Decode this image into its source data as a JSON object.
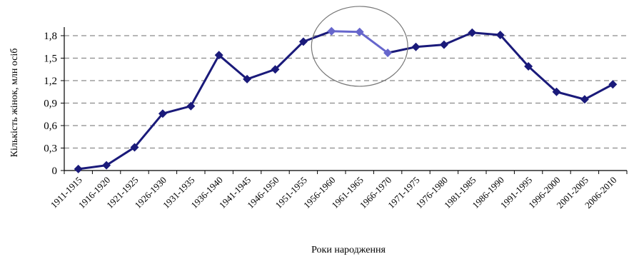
{
  "chart_data": {
    "type": "line",
    "title": "",
    "xlabel": "Роки народження",
    "ylabel": "Кількість жінок, млн осіб",
    "categories": [
      "1911-1915",
      "1916-1920",
      "1921-1925",
      "1926-1930",
      "1931-1935",
      "1936-1940",
      "1941-1945",
      "1946-1950",
      "1951-1955",
      "1956-1960",
      "1961-1965",
      "1966-1970",
      "1971-1975",
      "1976-1980",
      "1981-1985",
      "1986-1990",
      "1991-1995",
      "1996-2000",
      "2001-2005",
      "2006-2010"
    ],
    "series": [
      {
        "values": [
          0.02,
          0.07,
          0.31,
          0.76,
          0.86,
          1.54,
          1.22,
          1.35,
          1.72,
          1.86,
          1.85,
          1.57,
          1.65,
          1.68,
          1.84,
          1.81,
          1.39,
          1.05,
          0.95,
          1.15
        ],
        "color": "#1a1a7a",
        "highlight_color": "#6666cc",
        "highlight_categories": [
          "1956-1960",
          "1961-1965",
          "1966-1970"
        ]
      }
    ],
    "yticks": [
      "0",
      "0,3",
      "0,6",
      "0,9",
      "1,2",
      "1,5",
      "1,8"
    ],
    "ylim": [
      0,
      1.95
    ],
    "grid": "horizontal-dashed",
    "annotation": "ellipse around 1956-1960 to 1966-1970 peak"
  }
}
